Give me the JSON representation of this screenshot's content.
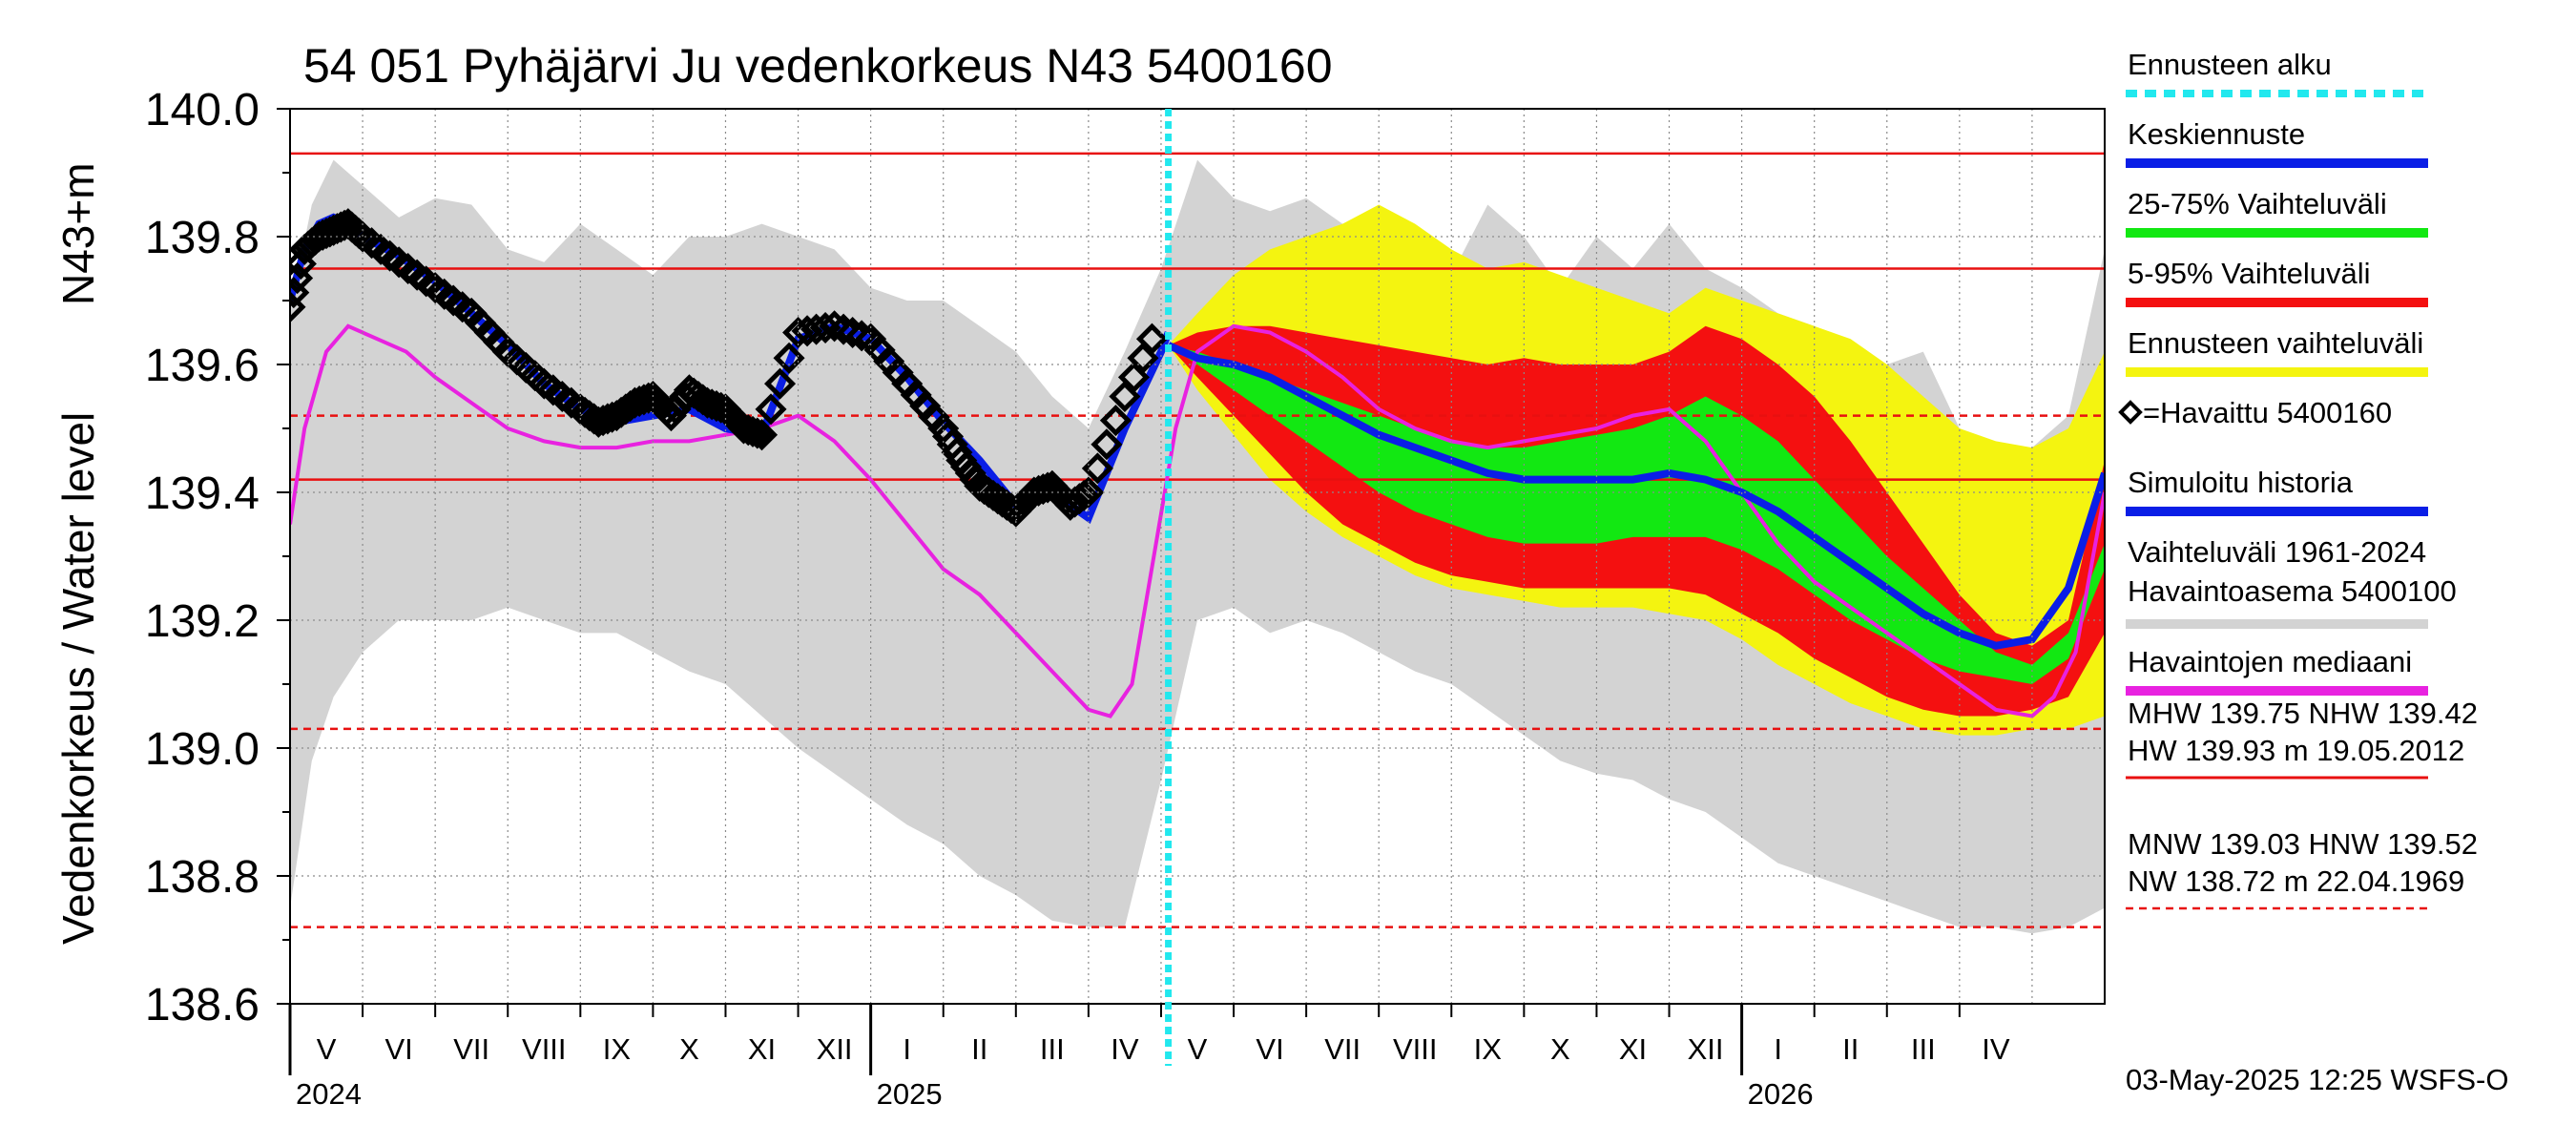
{
  "chart_data": {
    "type": "line",
    "title": "54 051 Pyhäjärvi Ju vedenkorkeus N43 5400160",
    "ylabel_main": "Vedenkorkeus / Water level",
    "ylabel_unit": "N43+m",
    "ylim": [
      138.6,
      140.0
    ],
    "y_ticks": [
      "140.0",
      "139.8",
      "139.6",
      "139.4",
      "139.2",
      "139.0",
      "138.8",
      "138.6"
    ],
    "x_range_months": [
      0,
      25
    ],
    "month_labels": [
      "V",
      "VI",
      "VII",
      "VIII",
      "IX",
      "X",
      "XI",
      "XII",
      "I",
      "II",
      "III",
      "IV",
      "V",
      "VI",
      "VII",
      "VIII",
      "IX",
      "X",
      "XI",
      "XII",
      "I",
      "II",
      "III",
      "IV"
    ],
    "year_labels": [
      {
        "label": "2024",
        "month": 0
      },
      {
        "label": "2025",
        "month": 8
      },
      {
        "label": "2026",
        "month": 20
      }
    ],
    "forecast_start_month": 12.1,
    "reference_lines": [
      {
        "name": "HW",
        "value": 139.93,
        "style": "solid"
      },
      {
        "name": "MHW",
        "value": 139.75,
        "style": "solid"
      },
      {
        "name": "NHW",
        "value": 139.42,
        "style": "solid"
      },
      {
        "name": "HNW",
        "value": 139.52,
        "style": "dashed"
      },
      {
        "name": "MNW",
        "value": 139.03,
        "style": "dashed"
      },
      {
        "name": "NW",
        "value": 138.72,
        "style": "dashed"
      }
    ],
    "historical_range": {
      "x": [
        0,
        0.3,
        0.6,
        1,
        1.5,
        2,
        2.5,
        3,
        3.5,
        4,
        4.5,
        5,
        5.5,
        6,
        6.5,
        7,
        7.5,
        8,
        8.5,
        9,
        9.5,
        10,
        10.5,
        11,
        11.5,
        12,
        12.5,
        13,
        13.5,
        14,
        14.5,
        15,
        15.5,
        16,
        16.5,
        17,
        17.5,
        18,
        18.5,
        19,
        19.5,
        20,
        20.5,
        21,
        21.5,
        22,
        22.5,
        23,
        23.5,
        24,
        24.5,
        25
      ],
      "upper": [
        139.68,
        139.85,
        139.92,
        139.88,
        139.83,
        139.86,
        139.85,
        139.78,
        139.76,
        139.82,
        139.78,
        139.74,
        139.8,
        139.8,
        139.82,
        139.8,
        139.78,
        139.72,
        139.7,
        139.7,
        139.66,
        139.62,
        139.55,
        139.5,
        139.62,
        139.75,
        139.92,
        139.86,
        139.84,
        139.86,
        139.82,
        139.84,
        139.78,
        139.74,
        139.85,
        139.8,
        139.72,
        139.8,
        139.75,
        139.82,
        139.75,
        139.72,
        139.68,
        139.66,
        139.62,
        139.6,
        139.62,
        139.5,
        139.45,
        139.47,
        139.52,
        139.78
      ],
      "lower": [
        138.75,
        138.98,
        139.08,
        139.15,
        139.2,
        139.2,
        139.2,
        139.22,
        139.2,
        139.18,
        139.18,
        139.15,
        139.12,
        139.1,
        139.05,
        139.0,
        138.96,
        138.92,
        138.88,
        138.85,
        138.8,
        138.77,
        138.73,
        138.72,
        138.72,
        138.95,
        139.2,
        139.22,
        139.18,
        139.2,
        139.18,
        139.15,
        139.12,
        139.1,
        139.06,
        139.02,
        138.98,
        138.96,
        138.95,
        138.92,
        138.9,
        138.86,
        138.82,
        138.8,
        138.78,
        138.76,
        138.74,
        138.72,
        138.72,
        138.71,
        138.72,
        138.75
      ]
    },
    "forecast_bands": {
      "x": [
        12.1,
        12.5,
        13,
        13.5,
        14,
        14.5,
        15,
        15.5,
        16,
        16.5,
        17,
        17.5,
        18,
        18.5,
        19,
        19.5,
        20,
        20.5,
        21,
        21.5,
        22,
        22.5,
        23,
        23.5,
        24,
        24.5,
        25
      ],
      "total_upper": [
        139.63,
        139.68,
        139.74,
        139.78,
        139.8,
        139.82,
        139.85,
        139.82,
        139.78,
        139.75,
        139.76,
        139.74,
        139.72,
        139.7,
        139.68,
        139.72,
        139.7,
        139.68,
        139.66,
        139.64,
        139.6,
        139.55,
        139.5,
        139.48,
        139.47,
        139.5,
        139.62
      ],
      "p95": [
        139.63,
        139.65,
        139.66,
        139.66,
        139.65,
        139.64,
        139.63,
        139.62,
        139.61,
        139.6,
        139.61,
        139.6,
        139.6,
        139.6,
        139.62,
        139.66,
        139.64,
        139.6,
        139.55,
        139.48,
        139.4,
        139.32,
        139.24,
        139.18,
        139.16,
        139.2,
        139.45
      ],
      "p75": [
        139.63,
        139.62,
        139.6,
        139.58,
        139.56,
        139.54,
        139.52,
        139.5,
        139.48,
        139.47,
        139.47,
        139.48,
        139.49,
        139.5,
        139.52,
        139.55,
        139.52,
        139.48,
        139.42,
        139.36,
        139.3,
        139.25,
        139.2,
        139.15,
        139.13,
        139.18,
        139.32
      ],
      "p25": [
        139.63,
        139.6,
        139.56,
        139.52,
        139.48,
        139.44,
        139.4,
        139.37,
        139.35,
        139.33,
        139.32,
        139.32,
        139.32,
        139.33,
        139.33,
        139.33,
        139.31,
        139.28,
        139.24,
        139.2,
        139.17,
        139.14,
        139.12,
        139.11,
        139.1,
        139.14,
        139.28
      ],
      "p5": [
        139.63,
        139.58,
        139.52,
        139.46,
        139.4,
        139.35,
        139.32,
        139.29,
        139.27,
        139.26,
        139.25,
        139.25,
        139.25,
        139.25,
        139.25,
        139.24,
        139.21,
        139.18,
        139.14,
        139.11,
        139.08,
        139.06,
        139.05,
        139.05,
        139.06,
        139.08,
        139.18
      ],
      "total_lower": [
        139.63,
        139.56,
        139.49,
        139.42,
        139.37,
        139.33,
        139.3,
        139.27,
        139.25,
        139.24,
        139.23,
        139.22,
        139.22,
        139.22,
        139.21,
        139.2,
        139.17,
        139.13,
        139.1,
        139.07,
        139.05,
        139.03,
        139.02,
        139.02,
        139.03,
        139.03,
        139.05
      ],
      "median": [
        139.63,
        139.61,
        139.6,
        139.58,
        139.55,
        139.52,
        139.49,
        139.47,
        139.45,
        139.43,
        139.42,
        139.42,
        139.42,
        139.42,
        139.43,
        139.42,
        139.4,
        139.37,
        139.33,
        139.29,
        139.25,
        139.21,
        139.18,
        139.16,
        139.17,
        139.25,
        139.43
      ]
    },
    "observed_median": {
      "x": [
        0,
        0.2,
        0.5,
        0.8,
        1.2,
        1.6,
        2,
        2.5,
        3,
        3.5,
        4,
        4.5,
        5,
        5.5,
        6,
        6.5,
        7,
        7.5,
        8,
        8.5,
        9,
        9.5,
        10,
        10.5,
        11,
        11.3,
        11.6,
        11.9,
        12.2,
        12.5,
        13,
        13.5,
        14,
        14.5,
        15,
        15.5,
        16,
        16.5,
        17,
        17.5,
        18,
        18.5,
        19,
        19.5,
        20,
        20.5,
        21,
        21.5,
        22,
        22.5,
        23,
        23.5,
        24,
        24.3,
        24.6,
        25
      ],
      "values": [
        139.35,
        139.5,
        139.62,
        139.66,
        139.64,
        139.62,
        139.58,
        139.54,
        139.5,
        139.48,
        139.47,
        139.47,
        139.48,
        139.48,
        139.49,
        139.5,
        139.52,
        139.48,
        139.42,
        139.35,
        139.28,
        139.24,
        139.18,
        139.12,
        139.06,
        139.05,
        139.1,
        139.3,
        139.5,
        139.62,
        139.66,
        139.65,
        139.62,
        139.58,
        139.53,
        139.5,
        139.48,
        139.47,
        139.48,
        139.49,
        139.5,
        139.52,
        139.53,
        139.48,
        139.4,
        139.32,
        139.26,
        139.22,
        139.18,
        139.14,
        139.1,
        139.06,
        139.05,
        139.08,
        139.15,
        139.4
      ]
    },
    "simulated_history": {
      "x": [
        0,
        0.2,
        0.4,
        0.6,
        0.8,
        1,
        1.5,
        2,
        2.5,
        3,
        3.5,
        4,
        4.5,
        5,
        5.5,
        6,
        6.5,
        7,
        7.5,
        8,
        8.5,
        9,
        9.5,
        10,
        10.5,
        11,
        11.5,
        12,
        12.1
      ],
      "values": [
        139.7,
        139.78,
        139.82,
        139.83,
        139.82,
        139.8,
        139.77,
        139.73,
        139.68,
        139.63,
        139.57,
        139.53,
        139.51,
        139.52,
        139.53,
        139.5,
        139.49,
        139.64,
        139.66,
        139.64,
        139.58,
        139.51,
        139.45,
        139.38,
        139.4,
        139.36,
        139.5,
        139.62,
        139.65
      ]
    },
    "observed": {
      "x": [
        0,
        0.2,
        0.4,
        0.6,
        0.8,
        1,
        1.5,
        2,
        2.5,
        3,
        3.5,
        4,
        4.25,
        4.5,
        4.75,
        5,
        5.25,
        5.5,
        5.75,
        6,
        6.25,
        6.5,
        7,
        7.5,
        8,
        8.5,
        9,
        9.25,
        9.5,
        9.75,
        10,
        10.25,
        10.5,
        10.75,
        11,
        11.5,
        12
      ],
      "values": [
        139.69,
        139.78,
        139.8,
        139.81,
        139.82,
        139.8,
        139.76,
        139.72,
        139.68,
        139.62,
        139.57,
        139.53,
        139.51,
        139.52,
        139.54,
        139.55,
        139.52,
        139.56,
        139.54,
        139.53,
        139.5,
        139.49,
        139.65,
        139.66,
        139.64,
        139.57,
        139.5,
        139.45,
        139.41,
        139.39,
        139.37,
        139.4,
        139.41,
        139.38,
        139.4,
        139.55,
        139.67
      ]
    },
    "legend": [
      {
        "label": "Ennusteen alku",
        "color": "#22e8ee",
        "kind": "dotted"
      },
      {
        "label": "Keskiennuste",
        "color": "#0a1ee6",
        "kind": "line"
      },
      {
        "label": "25-75% Vaihteluväli",
        "color": "#12e812",
        "kind": "line"
      },
      {
        "label": "5-95% Vaihteluväli",
        "color": "#f41010",
        "kind": "line"
      },
      {
        "label": "Ennusteen vaihteluväli",
        "color": "#f4f410",
        "kind": "line"
      },
      {
        "label": "=Havaittu 5400160",
        "color": "#000000",
        "kind": "diamond"
      },
      {
        "label": "Simuloitu historia",
        "color": "#0a1ee6",
        "kind": "line"
      },
      {
        "label": "Vaihteluväli 1961-2024",
        "label2": " Havaintoasema 5400100",
        "color": "#d3d3d3",
        "kind": "line"
      },
      {
        "label": "Havaintojen mediaani",
        "color": "#e822e0",
        "kind": "line"
      }
    ],
    "stats_text": {
      "line1": "MHW 139.75 NHW 139.42",
      "line2": "HW 139.93 m 19.05.2012",
      "line3": "MNW 139.03 HNW 139.52",
      "line4": "NW 138.72 m 22.04.1969"
    },
    "footer": "03-May-2025 12:25 WSFS-O",
    "colors": {
      "grey": "#d3d3d3",
      "yellow": "#f4f410",
      "red": "#f41010",
      "green": "#12e812",
      "blue": "#0a1ee6",
      "magenta": "#e822e0",
      "cyan": "#22e8ee",
      "refline": "#e81010"
    }
  }
}
